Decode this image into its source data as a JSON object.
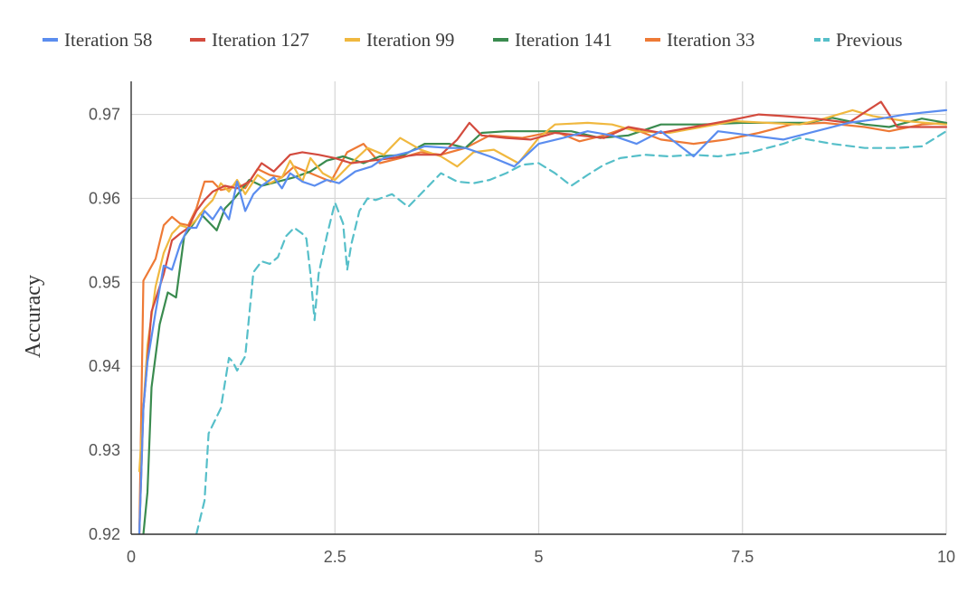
{
  "chart_data": {
    "type": "line",
    "title": "",
    "xlabel": "",
    "ylabel": "Accuracy",
    "xlim": [
      0,
      10
    ],
    "ylim": [
      0.92,
      0.972
    ],
    "x_ticks": [
      "0",
      "2.5",
      "5",
      "7.5",
      "10"
    ],
    "x_tick_values": [
      0,
      2.5,
      5,
      7.5,
      10
    ],
    "y_ticks": [
      "0.92",
      "0.93",
      "0.94",
      "0.95",
      "0.96",
      "0.97"
    ],
    "y_tick_values": [
      0.92,
      0.93,
      0.94,
      0.95,
      0.96,
      0.97
    ],
    "grid": true,
    "legend_position": "top",
    "series": [
      {
        "name": "Iteration 58",
        "color": "#5b8def",
        "dash": false,
        "x": [
          0.1,
          0.15,
          0.2,
          0.3,
          0.4,
          0.5,
          0.6,
          0.7,
          0.8,
          0.9,
          1.0,
          1.1,
          1.2,
          1.3,
          1.4,
          1.5,
          1.6,
          1.75,
          1.85,
          1.95,
          2.1,
          2.25,
          2.4,
          2.55,
          2.75,
          2.95,
          3.1,
          3.4,
          3.6,
          3.9,
          4.1,
          4.4,
          4.7,
          5.0,
          5.3,
          5.6,
          5.9,
          6.2,
          6.5,
          6.9,
          7.2,
          7.6,
          8.0,
          8.4,
          8.8,
          9.2,
          9.5,
          10.0
        ],
        "y": [
          0.92,
          0.935,
          0.9405,
          0.9465,
          0.952,
          0.9515,
          0.9545,
          0.9565,
          0.9565,
          0.9585,
          0.9575,
          0.959,
          0.9575,
          0.962,
          0.9585,
          0.9605,
          0.9615,
          0.9625,
          0.9612,
          0.963,
          0.962,
          0.9615,
          0.9622,
          0.9618,
          0.9632,
          0.9638,
          0.9648,
          0.9655,
          0.9662,
          0.966,
          0.966,
          0.965,
          0.9638,
          0.9665,
          0.9672,
          0.968,
          0.9675,
          0.9665,
          0.968,
          0.965,
          0.968,
          0.9675,
          0.967,
          0.968,
          0.969,
          0.9695,
          0.97,
          0.9705
        ]
      },
      {
        "name": "Iteration 127",
        "color": "#d34b3e",
        "dash": false,
        "x": [
          0.1,
          0.15,
          0.25,
          0.4,
          0.5,
          0.6,
          0.7,
          0.8,
          0.9,
          1.0,
          1.15,
          1.3,
          1.45,
          1.6,
          1.75,
          1.95,
          2.1,
          2.3,
          2.5,
          2.7,
          2.95,
          3.2,
          3.5,
          3.8,
          4.0,
          4.15,
          4.3,
          4.6,
          4.9,
          5.2,
          5.5,
          5.8,
          6.1,
          6.5,
          6.9,
          7.3,
          7.7,
          8.0,
          8.4,
          8.8,
          9.2,
          9.4,
          10.0
        ],
        "y": [
          0.92,
          0.935,
          0.9465,
          0.951,
          0.955,
          0.9558,
          0.9565,
          0.9585,
          0.9598,
          0.9608,
          0.9615,
          0.9612,
          0.962,
          0.9642,
          0.9632,
          0.9652,
          0.9655,
          0.9652,
          0.9648,
          0.9642,
          0.9645,
          0.9648,
          0.9652,
          0.9652,
          0.967,
          0.969,
          0.9675,
          0.9672,
          0.967,
          0.9678,
          0.9675,
          0.9672,
          0.9685,
          0.9678,
          0.9685,
          0.9692,
          0.97,
          0.9698,
          0.9695,
          0.969,
          0.9715,
          0.9685,
          0.9685
        ]
      },
      {
        "name": "Iteration 99",
        "color": "#f0b83f",
        "dash": false,
        "x": [
          0.1,
          0.15,
          0.2,
          0.3,
          0.4,
          0.5,
          0.6,
          0.7,
          0.8,
          0.9,
          1.0,
          1.1,
          1.2,
          1.3,
          1.4,
          1.55,
          1.7,
          1.85,
          1.95,
          2.1,
          2.2,
          2.35,
          2.5,
          2.7,
          2.9,
          3.1,
          3.3,
          3.55,
          3.8,
          4.0,
          4.2,
          4.45,
          4.75,
          5.0,
          5.2,
          5.6,
          5.9,
          6.2,
          6.6,
          7.0,
          7.4,
          7.8,
          8.2,
          8.5,
          8.85,
          9.1,
          9.5,
          10.0
        ],
        "y": [
          0.9275,
          0.935,
          0.9425,
          0.9495,
          0.9535,
          0.9558,
          0.9568,
          0.9565,
          0.9575,
          0.9588,
          0.9598,
          0.9618,
          0.9608,
          0.9622,
          0.9605,
          0.9628,
          0.9618,
          0.9625,
          0.9645,
          0.962,
          0.9648,
          0.963,
          0.9622,
          0.9642,
          0.966,
          0.9652,
          0.9672,
          0.9658,
          0.965,
          0.9638,
          0.9655,
          0.9658,
          0.9642,
          0.9672,
          0.9688,
          0.969,
          0.9688,
          0.968,
          0.9678,
          0.9685,
          0.9692,
          0.969,
          0.9688,
          0.9695,
          0.9705,
          0.9698,
          0.9692,
          0.9688
        ]
      },
      {
        "name": "Iteration 141",
        "color": "#3a8b4f",
        "dash": false,
        "x": [
          0.15,
          0.2,
          0.25,
          0.35,
          0.45,
          0.55,
          0.65,
          0.75,
          0.85,
          0.95,
          1.05,
          1.15,
          1.25,
          1.35,
          1.45,
          1.6,
          1.8,
          2.0,
          2.2,
          2.4,
          2.6,
          2.85,
          3.05,
          3.35,
          3.6,
          3.9,
          4.1,
          4.3,
          4.6,
          5.0,
          5.4,
          5.75,
          6.1,
          6.5,
          7.0,
          7.5,
          7.9,
          8.3,
          8.6,
          9.0,
          9.3,
          9.7,
          10.0
        ],
        "y": [
          0.92,
          0.925,
          0.9375,
          0.945,
          0.9488,
          0.9482,
          0.9555,
          0.9568,
          0.9582,
          0.9572,
          0.9562,
          0.9588,
          0.9598,
          0.961,
          0.9622,
          0.9615,
          0.962,
          0.9625,
          0.9632,
          0.9645,
          0.965,
          0.9642,
          0.965,
          0.9652,
          0.9665,
          0.9665,
          0.966,
          0.9678,
          0.968,
          0.968,
          0.968,
          0.9672,
          0.9675,
          0.9688,
          0.9688,
          0.969,
          0.969,
          0.969,
          0.9696,
          0.9688,
          0.9685,
          0.9695,
          0.969
        ]
      },
      {
        "name": "Iteration 33",
        "color": "#ee7a36",
        "dash": false,
        "x": [
          0.1,
          0.15,
          0.3,
          0.4,
          0.5,
          0.6,
          0.7,
          0.8,
          0.9,
          1.0,
          1.1,
          1.2,
          1.3,
          1.4,
          1.55,
          1.7,
          1.85,
          2.0,
          2.2,
          2.45,
          2.65,
          2.85,
          3.05,
          3.3,
          3.55,
          3.8,
          4.1,
          4.4,
          4.8,
          5.2,
          5.5,
          5.8,
          6.1,
          6.5,
          6.9,
          7.3,
          7.7,
          8.1,
          8.5,
          9.0,
          9.3,
          9.7,
          10.0
        ],
        "y": [
          0.92,
          0.9502,
          0.9528,
          0.9568,
          0.9578,
          0.957,
          0.9568,
          0.9588,
          0.962,
          0.962,
          0.961,
          0.9612,
          0.9618,
          0.9612,
          0.9635,
          0.9628,
          0.9625,
          0.9638,
          0.963,
          0.962,
          0.9655,
          0.9665,
          0.9642,
          0.9648,
          0.9655,
          0.9652,
          0.966,
          0.9675,
          0.9672,
          0.968,
          0.9668,
          0.9675,
          0.9685,
          0.967,
          0.9665,
          0.967,
          0.9678,
          0.9688,
          0.969,
          0.9685,
          0.968,
          0.9688,
          0.969
        ]
      },
      {
        "name": "Previous",
        "color": "#56bfc9",
        "dash": true,
        "x": [
          0.8,
          0.9,
          0.95,
          1.1,
          1.2,
          1.25,
          1.3,
          1.4,
          1.5,
          1.6,
          1.7,
          1.8,
          1.9,
          2.0,
          2.1,
          2.15,
          2.2,
          2.25,
          2.3,
          2.4,
          2.5,
          2.6,
          2.65,
          2.7,
          2.8,
          2.9,
          3.0,
          3.2,
          3.4,
          3.6,
          3.8,
          4.0,
          4.2,
          4.4,
          4.6,
          4.8,
          5.0,
          5.2,
          5.4,
          5.6,
          5.8,
          6.0,
          6.3,
          6.6,
          6.9,
          7.2,
          7.6,
          8.0,
          8.2,
          8.6,
          9.0,
          9.4,
          9.7,
          10.0
        ],
        "y": [
          0.92,
          0.924,
          0.932,
          0.935,
          0.941,
          0.9405,
          0.9395,
          0.9412,
          0.9512,
          0.9525,
          0.9522,
          0.953,
          0.9555,
          0.9565,
          0.9558,
          0.9552,
          0.951,
          0.9455,
          0.951,
          0.9555,
          0.9595,
          0.957,
          0.9515,
          0.9545,
          0.9585,
          0.96,
          0.9598,
          0.9605,
          0.959,
          0.961,
          0.963,
          0.962,
          0.9618,
          0.9622,
          0.963,
          0.964,
          0.9642,
          0.963,
          0.9615,
          0.9628,
          0.964,
          0.9648,
          0.9652,
          0.965,
          0.9652,
          0.965,
          0.9655,
          0.9665,
          0.9672,
          0.9665,
          0.966,
          0.966,
          0.9662,
          0.968
        ]
      }
    ]
  }
}
